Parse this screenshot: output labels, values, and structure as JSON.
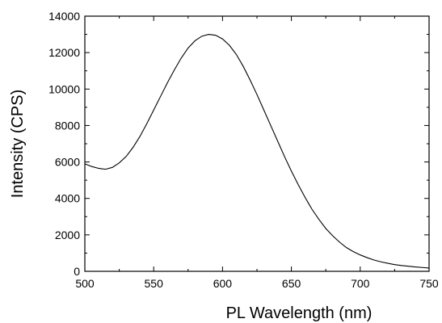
{
  "chart_data": {
    "type": "line",
    "title": "",
    "xlabel": "PL Wavelength (nm)",
    "ylabel": "Intensity (CPS)",
    "xlim": [
      500,
      750
    ],
    "ylim": [
      0,
      14000
    ],
    "x_ticks": [
      500,
      550,
      600,
      650,
      700,
      750
    ],
    "y_ticks": [
      0,
      2000,
      4000,
      6000,
      8000,
      10000,
      12000,
      14000
    ],
    "x_tick_labels": [
      "500",
      "550",
      "600",
      "650",
      "700",
      "750"
    ],
    "y_tick_labels": [
      "0",
      "2000",
      "4000",
      "6000",
      "8000",
      "10000",
      "12000",
      "14000"
    ],
    "grid": false,
    "legend": "none",
    "series": [
      {
        "color": "#000000",
        "x": [
          500,
          505,
          510,
          515,
          520,
          525,
          530,
          535,
          540,
          545,
          550,
          555,
          560,
          565,
          570,
          575,
          580,
          585,
          590,
          595,
          600,
          605,
          610,
          615,
          620,
          625,
          630,
          635,
          640,
          645,
          650,
          655,
          660,
          665,
          670,
          675,
          680,
          685,
          690,
          695,
          700,
          705,
          710,
          715,
          720,
          725,
          730,
          735,
          740,
          745,
          750
        ],
        "y": [
          5900,
          5750,
          5650,
          5600,
          5700,
          5950,
          6300,
          6800,
          7400,
          8100,
          8850,
          9600,
          10350,
          11050,
          11700,
          12250,
          12650,
          12900,
          13000,
          12950,
          12750,
          12400,
          11900,
          11250,
          10500,
          9700,
          8850,
          8000,
          7150,
          6300,
          5500,
          4750,
          4050,
          3400,
          2850,
          2350,
          1950,
          1600,
          1300,
          1080,
          900,
          750,
          620,
          520,
          440,
          370,
          320,
          280,
          240,
          210,
          180
        ]
      }
    ]
  }
}
